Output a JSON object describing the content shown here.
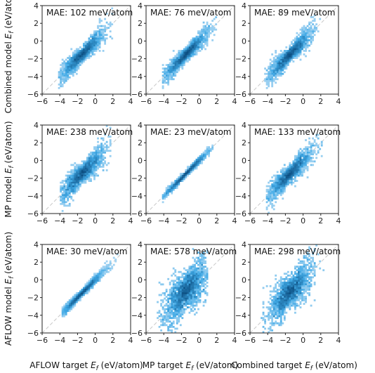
{
  "figure": {
    "row_labels": [
      "Combined model",
      "MP model",
      "AFLOW model"
    ],
    "col_labels": [
      "AFLOW target",
      "MP target",
      "Combined target"
    ],
    "ef_symbol": "E",
    "ef_subscript": "f",
    "unit": "(eV/atom)"
  },
  "chart_data": {
    "type": "heatmap",
    "subtype": "2d-histogram grid (3x3)",
    "xlim": [
      -6,
      4
    ],
    "ylim": [
      -6,
      4
    ],
    "x_ticks": [
      "−6",
      "−4",
      "−2",
      "0",
      "2",
      "4"
    ],
    "y_ticks": [
      "−6",
      "−4",
      "−2",
      "0",
      "2",
      "4"
    ],
    "reference_line": "y = x (dashed, light gray)",
    "colormap": [
      "#cfe6f7",
      "#3fa9e6",
      "#0b4d80"
    ],
    "panels": [
      {
        "row": 0,
        "col": 0,
        "mae": "MAE: 102 meV/atom",
        "x_range": [
          -4.2,
          2.0
        ],
        "spread": 0.35,
        "bias": 0.0
      },
      {
        "row": 0,
        "col": 1,
        "mae": "MAE: 76 meV/atom",
        "x_range": [
          -4.2,
          2.0
        ],
        "spread": 0.3,
        "bias": 0.0
      },
      {
        "row": 0,
        "col": 2,
        "mae": "MAE: 89 meV/atom",
        "x_range": [
          -4.5,
          2.2
        ],
        "spread": 0.35,
        "bias": 0.0
      },
      {
        "row": 1,
        "col": 0,
        "mae": "MAE: 238 meV/atom",
        "x_range": [
          -4.0,
          1.8
        ],
        "spread": 0.45,
        "bias": 0.1
      },
      {
        "row": 1,
        "col": 1,
        "mae": "MAE: 23 meV/atom",
        "x_range": [
          -4.2,
          1.6
        ],
        "spread": 0.12,
        "bias": 0.0
      },
      {
        "row": 1,
        "col": 2,
        "mae": "MAE: 133 meV/atom",
        "x_range": [
          -4.2,
          2.2
        ],
        "spread": 0.4,
        "bias": 0.0
      },
      {
        "row": 2,
        "col": 0,
        "mae": "MAE: 30 meV/atom",
        "x_range": [
          -3.8,
          2.5
        ],
        "spread": 0.15,
        "bias": 0.0
      },
      {
        "row": 2,
        "col": 1,
        "mae": "MAE: 578 meV/atom",
        "x_range": [
          -4.8,
          1.0
        ],
        "spread": 0.85,
        "bias": 0.5
      },
      {
        "row": 2,
        "col": 2,
        "mae": "MAE: 298 meV/atom",
        "x_range": [
          -4.8,
          2.5
        ],
        "spread": 0.7,
        "bias": 0.3
      }
    ]
  }
}
